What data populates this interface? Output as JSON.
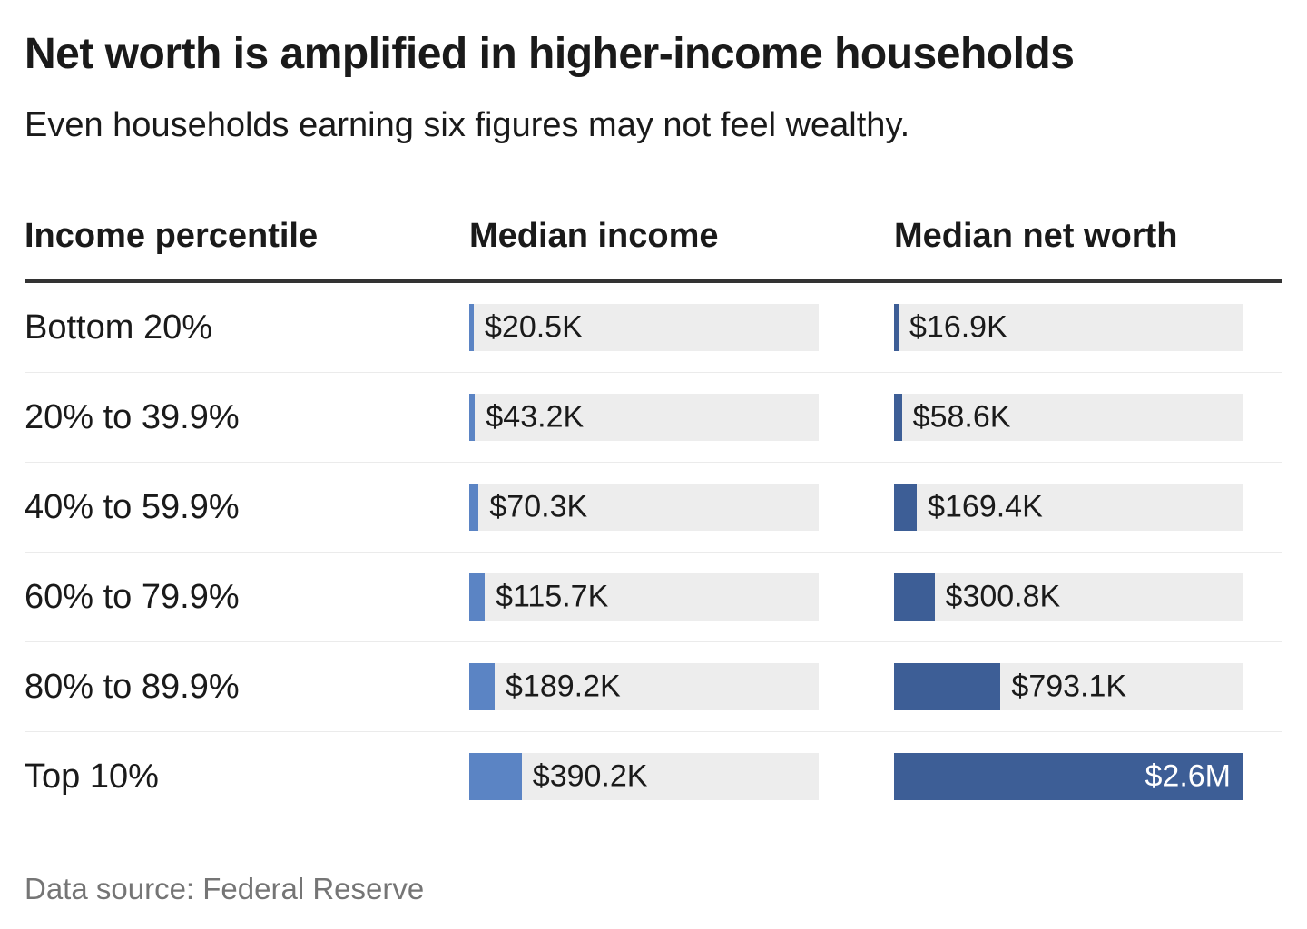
{
  "title": "Net worth is amplified in higher-income households",
  "subtitle": "Even households earning six figures may not feel wealthy.",
  "source": "Data source: Federal Reserve",
  "columns": {
    "percentile": "Income percentile",
    "income": "Median income",
    "net_worth": "Median net worth"
  },
  "colors": {
    "income_bar": "#5b84c4",
    "net_worth_bar": "#3d5e96",
    "track": "#ededed",
    "header_rule": "#333333",
    "source_text": "#757575"
  },
  "chart_data": {
    "type": "bar",
    "orientation": "horizontal",
    "title": "Net worth is amplified in higher-income households",
    "subtitle": "Even households earning six figures may not feel wealthy.",
    "categories": [
      "Bottom 20%",
      "20% to 39.9%",
      "40% to 59.9%",
      "60% to 79.9%",
      "80% to 89.9%",
      "Top 10%"
    ],
    "series": [
      {
        "name": "Median income",
        "values_thousands_usd": [
          20.5,
          43.2,
          70.3,
          115.7,
          189.2,
          390.2
        ],
        "labels": [
          "$20.5K",
          "$43.2K",
          "$70.3K",
          "$115.7K",
          "$189.2K",
          "$390.2K"
        ]
      },
      {
        "name": "Median net worth",
        "values_thousands_usd": [
          16.9,
          58.6,
          169.4,
          300.8,
          793.1,
          2600
        ],
        "labels": [
          "$16.9K",
          "$58.6K",
          "$169.4K",
          "$300.8K",
          "$793.1K",
          "$2.6M"
        ]
      }
    ],
    "value_axis_max_thousands": 2600,
    "grid": false,
    "legend": "none",
    "source": "Data source: Federal Reserve"
  }
}
